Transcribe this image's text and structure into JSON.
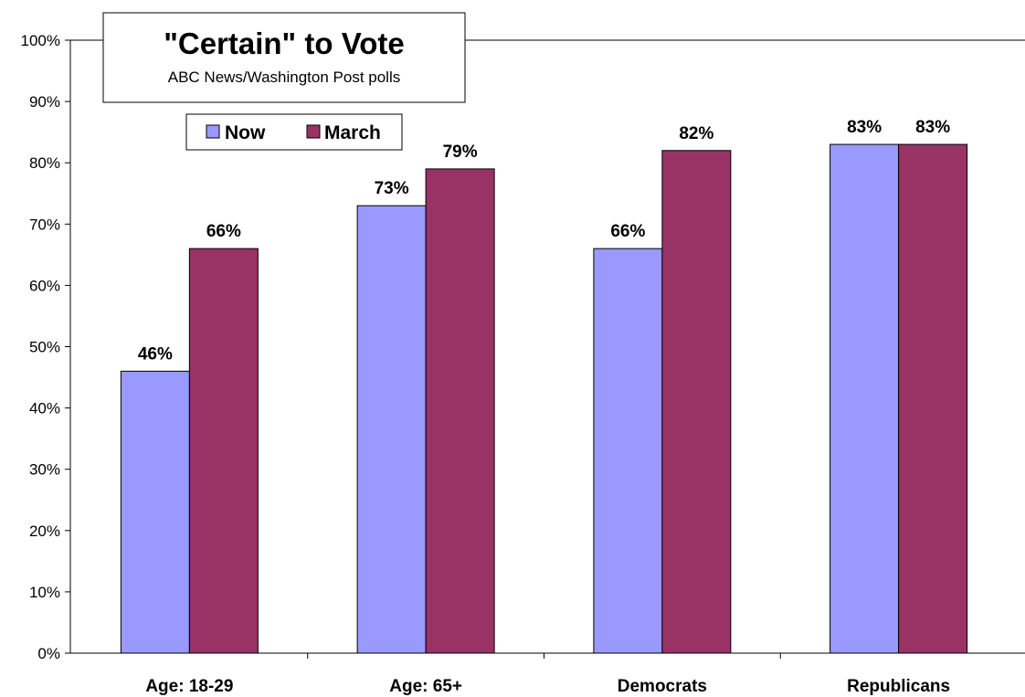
{
  "chart_data": {
    "type": "bar",
    "title": "\"Certain\" to Vote",
    "subtitle": "ABC News/Washington Post polls",
    "categories": [
      "Age: 18-29",
      "Age: 65+",
      "Democrats",
      "Republicans"
    ],
    "series": [
      {
        "name": "Now",
        "values": [
          46,
          73,
          66,
          83
        ],
        "color": "#9999ff"
      },
      {
        "name": "March",
        "values": [
          66,
          79,
          82,
          83
        ],
        "color": "#993366"
      }
    ],
    "ylim": [
      0,
      100
    ],
    "yticks": [
      "0%",
      "10%",
      "20%",
      "30%",
      "40%",
      "50%",
      "60%",
      "70%",
      "80%",
      "90%",
      "100%"
    ],
    "value_suffix": "%",
    "xlabel": "",
    "ylabel": "",
    "grid": false,
    "legend": "top-left"
  }
}
